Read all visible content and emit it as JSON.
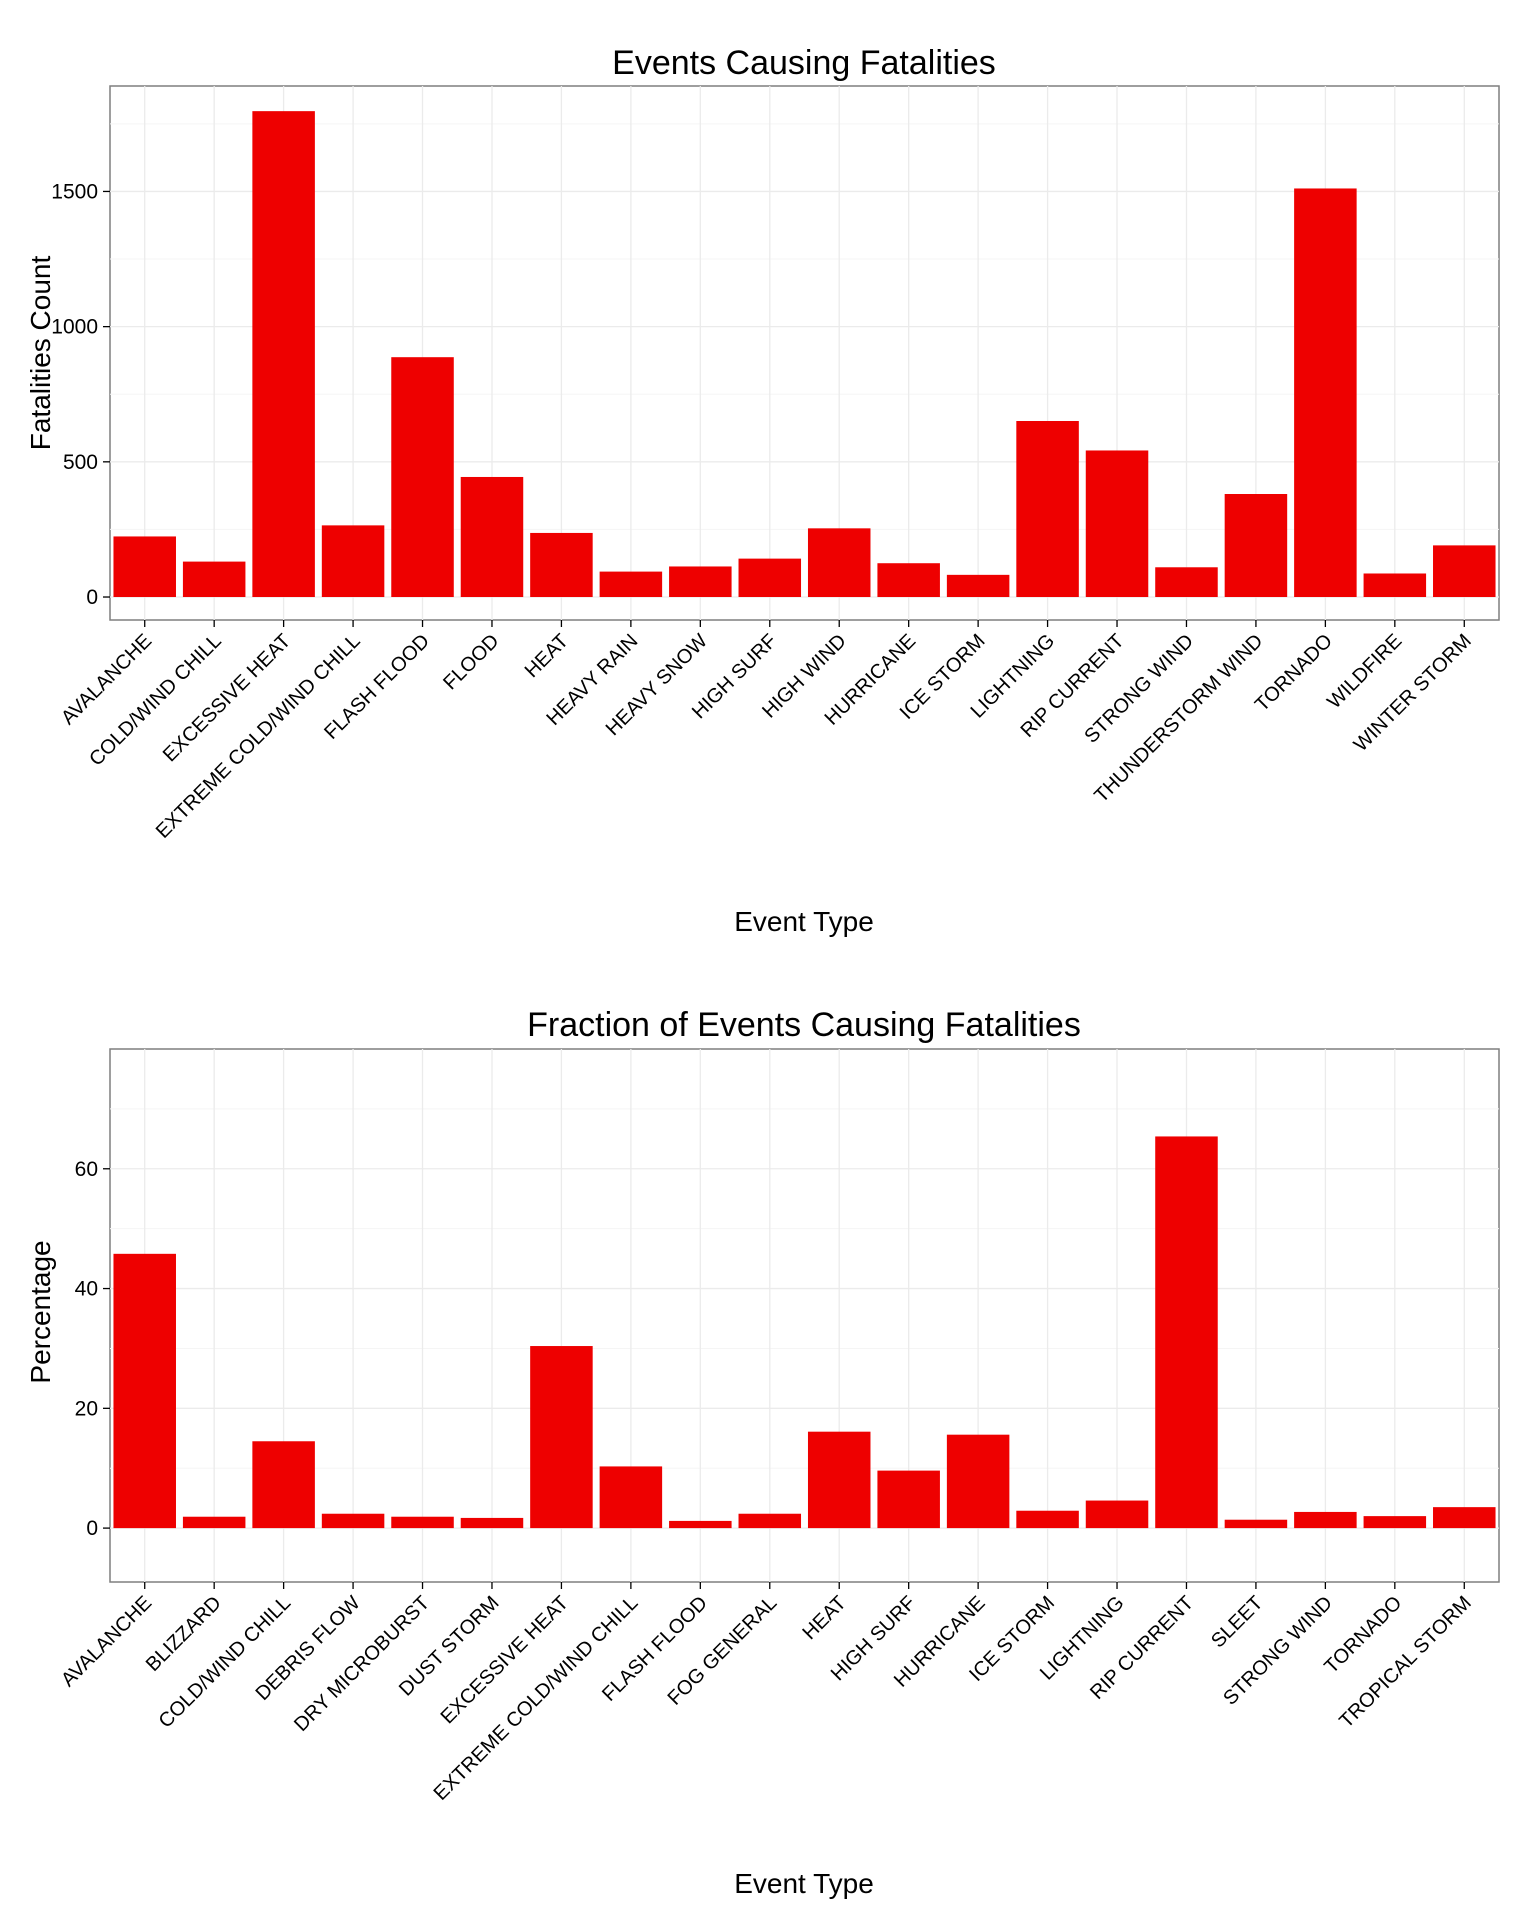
{
  "chart_data": [
    {
      "type": "bar",
      "title": "Events Causing Fatalities",
      "xlabel": "Event Type",
      "ylabel": "Fatalities Count",
      "categories": [
        "AVALANCHE",
        "COLD/WIND CHILL",
        "EXCESSIVE HEAT",
        "EXTREME COLD/WIND CHILL",
        "FLASH FLOOD",
        "FLOOD",
        "HEAT",
        "HEAVY RAIN",
        "HEAVY SNOW",
        "HIGH SURF",
        "HIGH WIND",
        "HURRICANE",
        "ICE STORM",
        "LIGHTNING",
        "RIP CURRENT",
        "STRONG WIND",
        "THUNDERSTORM WIND",
        "TORNADO",
        "WILDFIRE",
        "WINTER STORM"
      ],
      "values": [
        224,
        131,
        1797,
        265,
        887,
        444,
        237,
        94,
        113,
        142,
        254,
        125,
        82,
        651,
        542,
        110,
        381,
        1511,
        87,
        191
      ],
      "ylim": [
        -85,
        1890
      ],
      "yticks": [
        0,
        500,
        1000,
        1500
      ],
      "grid": true,
      "bar_color": "#ee0000"
    },
    {
      "type": "bar",
      "title": "Fraction of Events Causing Fatalities",
      "xlabel": "Event Type",
      "ylabel": "Percentage",
      "categories": [
        "AVALANCHE",
        "BLIZZARD",
        "COLD/WIND CHILL",
        "DEBRIS FLOW",
        "DRY MICROBURST",
        "DUST STORM",
        "EXCESSIVE HEAT",
        "EXTREME COLD/WIND CHILL",
        "FLASH FLOOD",
        "FOG GENERAL",
        "HEAT",
        "HIGH SURF",
        "HURRICANE",
        "ICE STORM",
        "LIGHTNING",
        "RIP CURRENT",
        "SLEET",
        "STRONG WIND",
        "TORNADO",
        "TROPICAL STORM"
      ],
      "values": [
        45.8,
        1.9,
        14.5,
        2.4,
        1.9,
        1.7,
        30.4,
        10.3,
        1.2,
        2.4,
        16.1,
        9.6,
        15.6,
        2.9,
        4.6,
        65.4,
        1.4,
        2.7,
        2.0,
        3.5
      ],
      "ylim": [
        -9,
        80
      ],
      "yticks": [
        0,
        20,
        40,
        60
      ],
      "grid": true,
      "bar_color": "#ee0000"
    }
  ]
}
